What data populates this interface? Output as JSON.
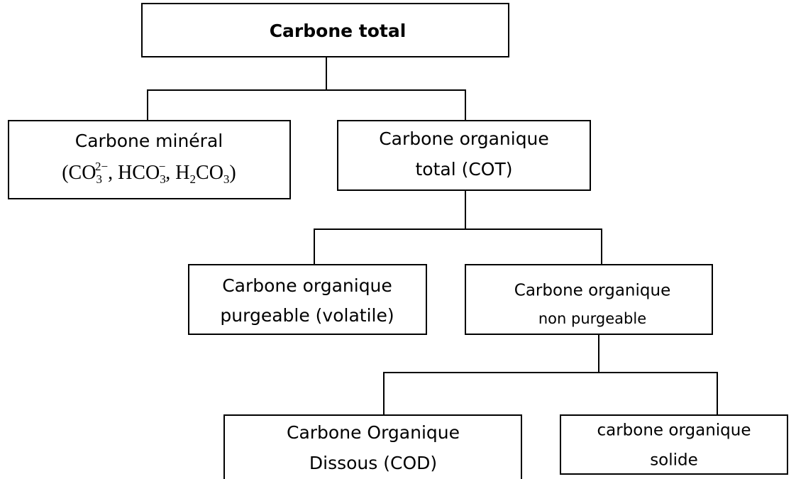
{
  "nodes": [
    {
      "lines": [
        "Carbone total"
      ]
    },
    {
      "lines": [
        "Carbone minéral"
      ],
      "formula": [
        {
          "text": "(CO"
        },
        {
          "sub": "3",
          "sup": "2−"
        },
        {
          "text": ", HCO"
        },
        {
          "sub": "3",
          "sup": "−"
        },
        {
          "text": ", H"
        },
        {
          "sub": "2"
        },
        {
          "text": "CO"
        },
        {
          "sub": "3"
        },
        {
          "text": ")"
        }
      ]
    },
    {
      "lines": [
        "Carbone organique",
        "total (COT)"
      ]
    },
    {
      "lines": [
        "Carbone organique",
        "purgeable (volatile)"
      ]
    },
    {
      "lines": [
        "Carbone organique",
        "non purgeable"
      ]
    },
    {
      "lines": [
        "Carbone Organique",
        "Dissous (COD)"
      ]
    },
    {
      "lines": [
        "carbone organique",
        "solide"
      ]
    }
  ]
}
